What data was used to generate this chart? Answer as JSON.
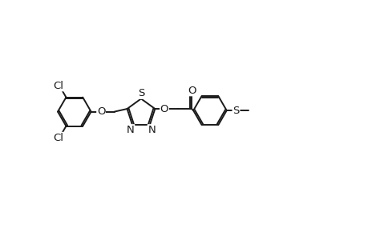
{
  "bg_color": "#ffffff",
  "line_color": "#1a1a1a",
  "line_width": 1.4,
  "font_size": 9.5,
  "figsize": [
    4.6,
    3.0
  ],
  "dpi": 100,
  "xlim": [
    -5.2,
    5.8
  ],
  "ylim": [
    -3.2,
    3.2
  ]
}
